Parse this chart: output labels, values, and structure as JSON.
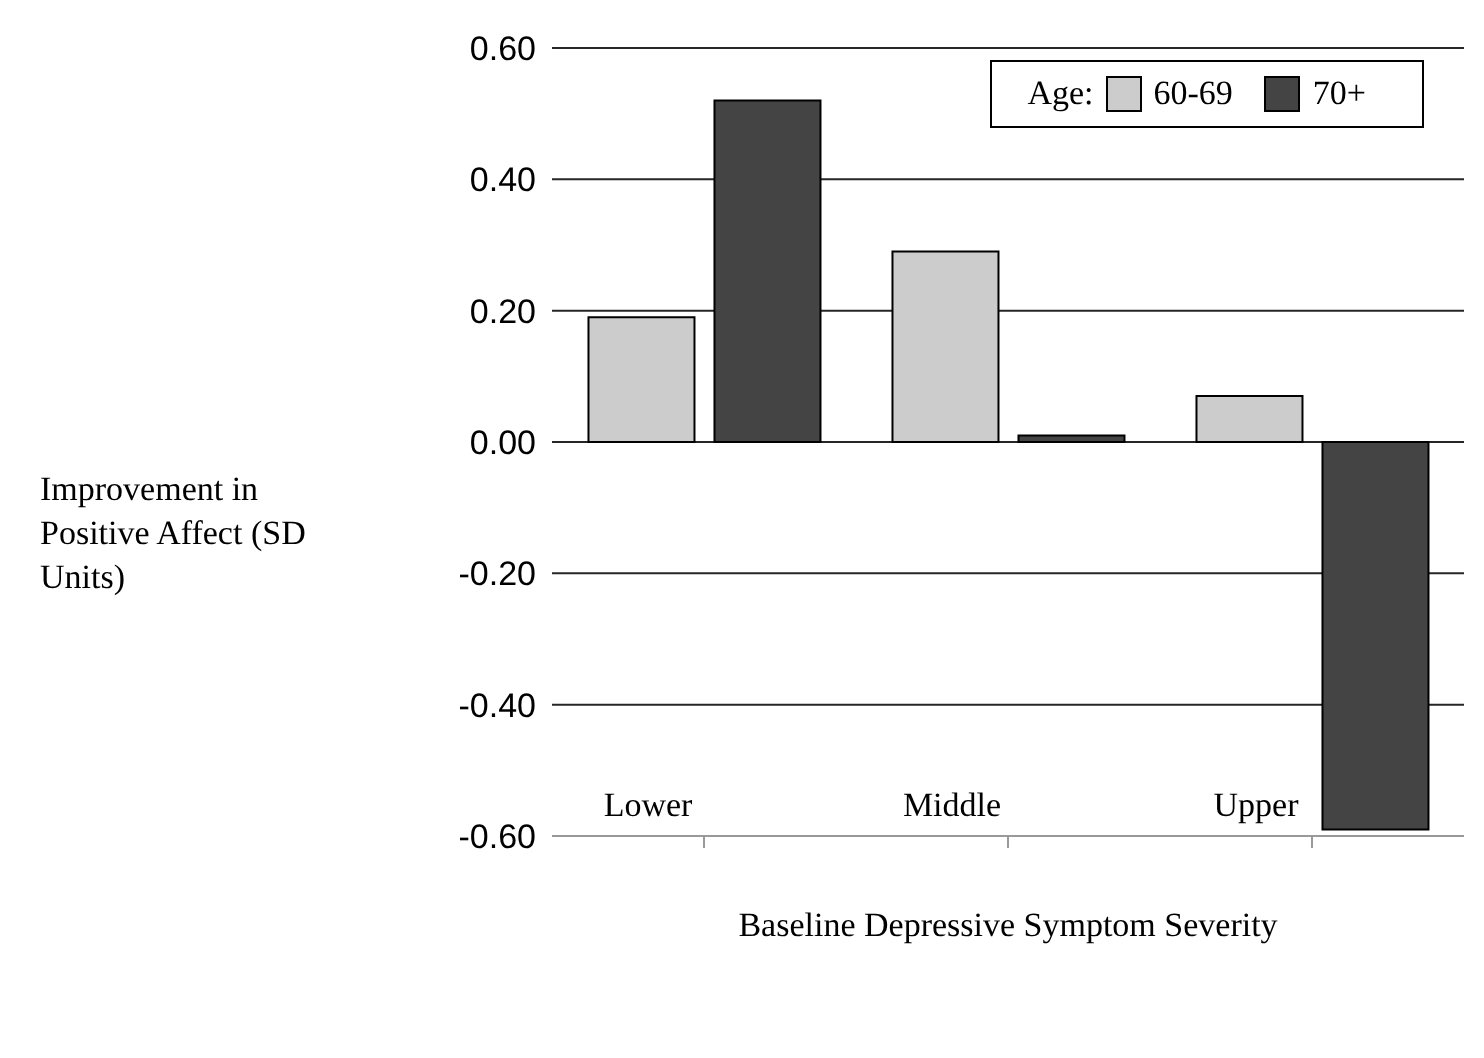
{
  "chart_data": {
    "type": "bar",
    "ylabel": "Improvement in Positive Affect (SD Units)",
    "xlabel": "Baseline Depressive Symptom Severity",
    "legend_title": "Age:",
    "categories": [
      "Lower",
      "Middle",
      "Upper"
    ],
    "series": [
      {
        "name": "60-69",
        "color": "#cccccc",
        "values": [
          0.19,
          0.29,
          0.07
        ]
      },
      {
        "name": "70+",
        "color": "#444444",
        "values": [
          0.52,
          0.01,
          -0.59
        ]
      }
    ],
    "ylim": [
      -0.6,
      0.6
    ],
    "yticks": [
      {
        "value": -0.6,
        "label": "-0.60"
      },
      {
        "value": -0.4,
        "label": "-0.40"
      },
      {
        "value": -0.2,
        "label": "-0.20"
      },
      {
        "value": 0,
        "label": "0.00"
      },
      {
        "value": 0.2,
        "label": "0.20"
      },
      {
        "value": 0.4,
        "label": "0.40"
      },
      {
        "value": 0.6,
        "label": "0.60"
      }
    ],
    "grid": "y",
    "legend": "top right"
  }
}
